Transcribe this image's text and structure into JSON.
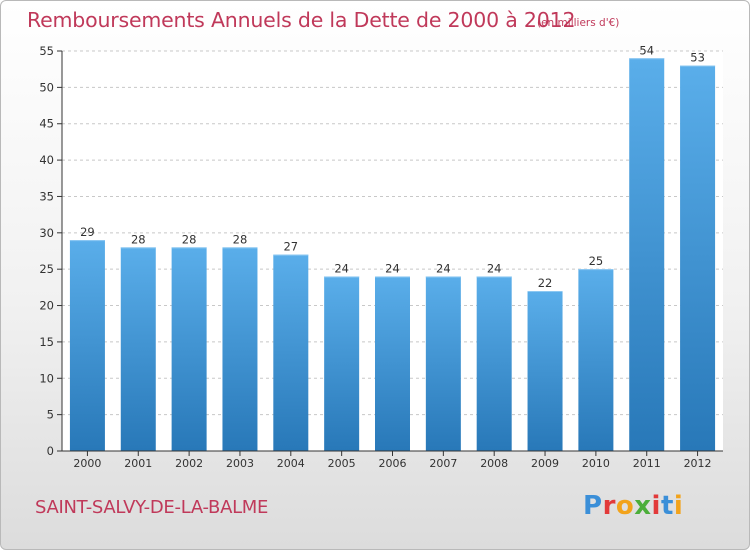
{
  "chart_data": {
    "type": "bar",
    "title": "Remboursements Annuels de la Dette de 2000 à 2012",
    "subtitle": "(en milliers d'€)",
    "categories": [
      "2000",
      "2001",
      "2002",
      "2003",
      "2004",
      "2005",
      "2006",
      "2007",
      "2008",
      "2009",
      "2010",
      "2011",
      "2012"
    ],
    "values": [
      29,
      28,
      28,
      28,
      27,
      24,
      24,
      24,
      24,
      22,
      25,
      54,
      53
    ],
    "ylim": [
      0,
      55
    ],
    "yticks": [
      0,
      5,
      10,
      15,
      20,
      25,
      30,
      35,
      40,
      45,
      50,
      55
    ],
    "grid": true,
    "colors": {
      "bar_top": "#5aaeea",
      "bar_bottom": "#2878b8",
      "title": "#c0395a",
      "grid": "#c8c8c8",
      "axis": "#333333"
    }
  },
  "footer": {
    "commune": "SAINT-SALVY-DE-LA-BALME",
    "logo": "Proxiti",
    "logo_colors": [
      "#3b8fd8",
      "#e23a3a",
      "#f2a31b",
      "#4cae3a",
      "#e23a3a",
      "#3b8fd8",
      "#f2a31b"
    ]
  }
}
